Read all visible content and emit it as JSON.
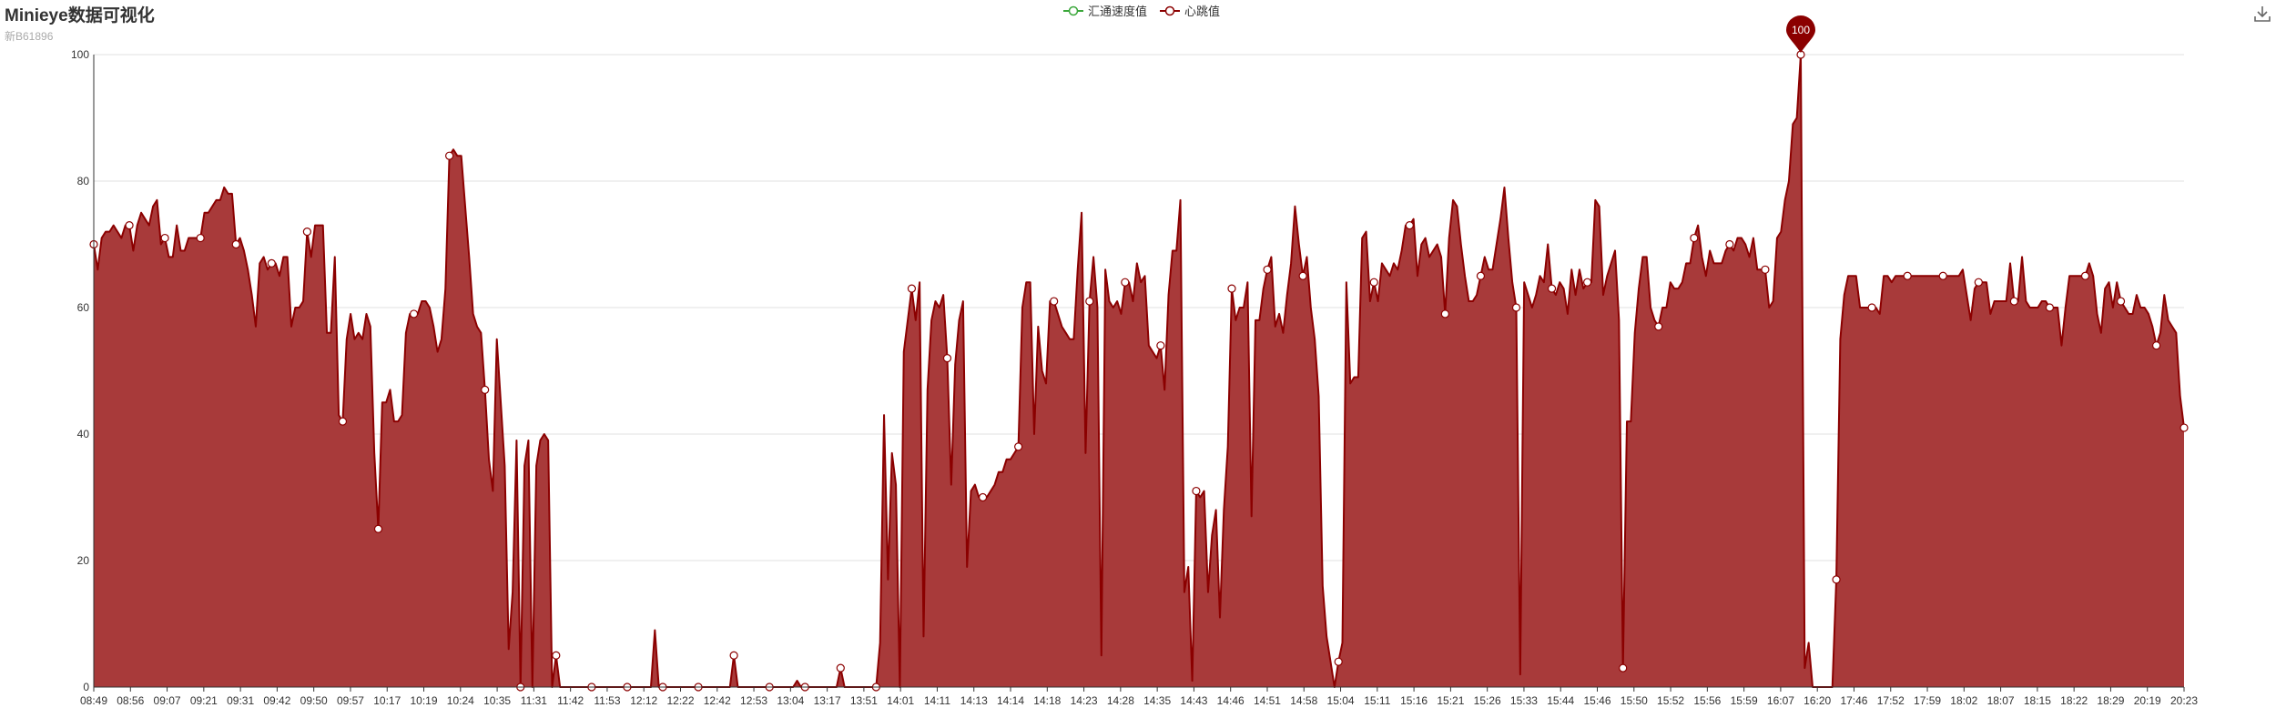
{
  "title": "Minieye数据可视化",
  "subtitle": "新B61896",
  "toolbox": {
    "save_icon": "download-icon"
  },
  "legend": [
    {
      "name": "汇通速度值",
      "color": "#3aa73a"
    },
    {
      "name": "心跳值",
      "color": "#8b0000"
    }
  ],
  "colors": {
    "area_fill": "#a83a3a",
    "line": "#8b0000",
    "marker_fill": "#ffffff",
    "pin": "#8b0000",
    "grid": "#e0e0e0",
    "axis": "#333333"
  },
  "chart_data": {
    "type": "area",
    "title": "Minieye数据可视化",
    "subtitle": "新B61896",
    "xlabel": "",
    "ylabel": "",
    "ylim": [
      0,
      100
    ],
    "yticks": [
      0,
      20,
      40,
      60,
      80,
      100
    ],
    "xticks": [
      "08:49",
      "08:56",
      "09:07",
      "09:21",
      "09:31",
      "09:42",
      "09:50",
      "09:57",
      "10:17",
      "10:19",
      "10:24",
      "10:35",
      "11:31",
      "11:42",
      "11:53",
      "12:12",
      "12:22",
      "12:42",
      "12:53",
      "13:04",
      "13:17",
      "13:51",
      "14:01",
      "14:11",
      "14:13",
      "14:14",
      "14:18",
      "14:23",
      "14:28",
      "14:35",
      "14:43",
      "14:46",
      "14:51",
      "14:58",
      "15:04",
      "15:11",
      "15:16",
      "15:21",
      "15:26",
      "15:33",
      "15:44",
      "15:46",
      "15:50",
      "15:52",
      "15:56",
      "15:59",
      "16:07",
      "16:20",
      "17:46",
      "17:52",
      "17:59",
      "18:02",
      "18:07",
      "18:15",
      "18:22",
      "18:29",
      "20:19",
      "20:23"
    ],
    "grid": true,
    "legend_position": "top-center",
    "markpoint": {
      "label": "100",
      "value": 100,
      "type": "max"
    },
    "series": [
      {
        "name": "汇通速度值",
        "values": []
      },
      {
        "name": "心跳值",
        "values": [
          70,
          66,
          71,
          72,
          72,
          73,
          72,
          71,
          73,
          73,
          69,
          73,
          75,
          74,
          73,
          76,
          77,
          70,
          71,
          68,
          68,
          73,
          69,
          69,
          71,
          71,
          71,
          71,
          75,
          75,
          76,
          77,
          77,
          79,
          78,
          78,
          70,
          71,
          69,
          66,
          62,
          57,
          67,
          68,
          66,
          67,
          67,
          65,
          68,
          68,
          57,
          60,
          60,
          61,
          72,
          68,
          73,
          73,
          73,
          56,
          56,
          68,
          43,
          42,
          55,
          59,
          55,
          56,
          55,
          59,
          57,
          37,
          25,
          45,
          45,
          47,
          42,
          42,
          43,
          56,
          59,
          59,
          59,
          61,
          61,
          60,
          57,
          53,
          55,
          63,
          84,
          85,
          84,
          84,
          76,
          68,
          59,
          57,
          56,
          47,
          36,
          31,
          55,
          45,
          35,
          6,
          15,
          39,
          0,
          35,
          39,
          0,
          35,
          39,
          40,
          39,
          0,
          5,
          0,
          0,
          0,
          0,
          0,
          0,
          0,
          0,
          0,
          0,
          0,
          0,
          0,
          0,
          0,
          0,
          0,
          0,
          0,
          0,
          0,
          0,
          0,
          0,
          9,
          0,
          0,
          0,
          0,
          0,
          0,
          0,
          0,
          0,
          0,
          0,
          0,
          0,
          0,
          0,
          0,
          0,
          0,
          0,
          5,
          0,
          0,
          0,
          0,
          0,
          0,
          0,
          0,
          0,
          0,
          0,
          0,
          0,
          0,
          0,
          1,
          0,
          0,
          0,
          0,
          0,
          0,
          0,
          0,
          0,
          0,
          3,
          0,
          0,
          0,
          0,
          0,
          0,
          0,
          0,
          0,
          7,
          43,
          17,
          37,
          32,
          0,
          53,
          58,
          63,
          58,
          64,
          8,
          47,
          58,
          61,
          60,
          62,
          52,
          32,
          51,
          58,
          61,
          19,
          31,
          32,
          30,
          30,
          30,
          31,
          32,
          34,
          34,
          36,
          36,
          37,
          38,
          60,
          64,
          64,
          40,
          57,
          50,
          48,
          61,
          61,
          59,
          57,
          56,
          55,
          55,
          66,
          75,
          37,
          61,
          68,
          60,
          5,
          66,
          61,
          60,
          61,
          59,
          64,
          64,
          61,
          67,
          64,
          65,
          54,
          53,
          52,
          54,
          47,
          62,
          69,
          69,
          77,
          15,
          19,
          1,
          31,
          30,
          31,
          15,
          24,
          28,
          11,
          28,
          38,
          63,
          58,
          60,
          60,
          64,
          27,
          58,
          58,
          63,
          66,
          68,
          57,
          59,
          56,
          62,
          67,
          76,
          70,
          65,
          68,
          60,
          55,
          46,
          16,
          8,
          4,
          0,
          4,
          7,
          64,
          48,
          49,
          49,
          71,
          72,
          61,
          64,
          61,
          67,
          66,
          65,
          67,
          66,
          69,
          73,
          73,
          74,
          65,
          70,
          71,
          68,
          69,
          70,
          68,
          59,
          71,
          77,
          76,
          70,
          65,
          61,
          61,
          62,
          65,
          68,
          66,
          66,
          70,
          74,
          79,
          71,
          64,
          60,
          2,
          64,
          62,
          60,
          62,
          65,
          64,
          70,
          63,
          62,
          64,
          63,
          59,
          66,
          62,
          66,
          63,
          64,
          64,
          77,
          76,
          62,
          65,
          67,
          69,
          58,
          3,
          42,
          42,
          56,
          63,
          68,
          68,
          60,
          58,
          57,
          60,
          60,
          64,
          63,
          63,
          64,
          67,
          67,
          71,
          73,
          68,
          65,
          69,
          67,
          67,
          67,
          69,
          70,
          69,
          71,
          71,
          70,
          68,
          71,
          66,
          66,
          66,
          60,
          61,
          71,
          72,
          77,
          80,
          89,
          90,
          100,
          3,
          7,
          0,
          0,
          0,
          0,
          0,
          0,
          17,
          55,
          62,
          65,
          65,
          65,
          60,
          60,
          60,
          60,
          60,
          59,
          65,
          65,
          64,
          65,
          65,
          65,
          65,
          65,
          65,
          65,
          65,
          65,
          65,
          65,
          65,
          65,
          65,
          65,
          65,
          65,
          66,
          62,
          58,
          63,
          64,
          64,
          64,
          59,
          61,
          61,
          61,
          61,
          67,
          61,
          61,
          68,
          61,
          60,
          60,
          60,
          61,
          61,
          60,
          60,
          60,
          54,
          60,
          65,
          65,
          65,
          65,
          65,
          67,
          65,
          59,
          56,
          63,
          64,
          60,
          64,
          61,
          60,
          59,
          59,
          62,
          60,
          60,
          59,
          57,
          54,
          56,
          62,
          58,
          57,
          56,
          46,
          41
        ]
      }
    ]
  }
}
